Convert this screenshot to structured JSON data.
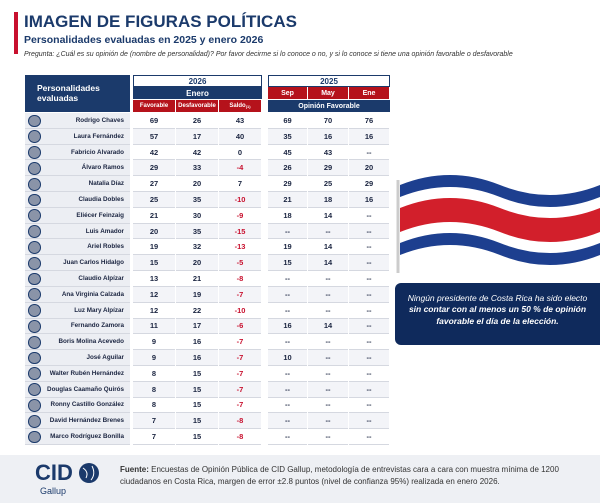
{
  "header": {
    "title": "IMAGEN DE FIGURAS POLÍTICAS",
    "subtitle": "Personalidades evaluadas en 2025 y enero 2026",
    "question": "Pregunta: ¿Cuál es su opinión de (nombre de personalidad)? Por favor decirme si lo conoce o no, y si lo conoce si tiene una opinión favorable o desfavorable"
  },
  "table": {
    "name_header": "Personalidades evaluadas",
    "group_2026": {
      "year": "2026",
      "month": "Enero",
      "columns": [
        "Favorable",
        "Desfavorable",
        "Saldo"
      ],
      "saldo_note": "(1)"
    },
    "group_2025": {
      "year": "2025",
      "months": [
        "Sep",
        "May",
        "Ene"
      ],
      "label": "Opinión Favorable"
    },
    "rows": [
      [
        "Rodrigo Chaves",
        69,
        26,
        43,
        69,
        70,
        76
      ],
      [
        "Laura Fernández",
        57,
        17,
        40,
        35,
        16,
        16
      ],
      [
        "Fabricio Alvarado",
        42,
        42,
        0,
        45,
        43,
        "--"
      ],
      [
        "Álvaro Ramos",
        29,
        33,
        -4,
        26,
        29,
        20
      ],
      [
        "Natalia Díaz",
        27,
        20,
        7,
        29,
        25,
        29
      ],
      [
        "Claudia Dobles",
        25,
        35,
        -10,
        21,
        18,
        16
      ],
      [
        "Eliécer Feinzaig",
        21,
        30,
        -9,
        18,
        14,
        "--"
      ],
      [
        "Luis Amador",
        20,
        35,
        -15,
        "--",
        "--",
        "--"
      ],
      [
        "Ariel Robles",
        19,
        32,
        -13,
        19,
        14,
        "--"
      ],
      [
        "Juan Carlos Hidalgo",
        15,
        20,
        -5,
        15,
        14,
        "--"
      ],
      [
        "Claudio Alpízar",
        13,
        21,
        -8,
        "--",
        "--",
        "--"
      ],
      [
        "Ana Virginia Calzada",
        12,
        19,
        -7,
        "--",
        "--",
        "--"
      ],
      [
        "Luz Mary Alpízar",
        12,
        22,
        -10,
        "--",
        "--",
        "--"
      ],
      [
        "Fernando Zamora",
        11,
        17,
        -6,
        16,
        14,
        "--"
      ],
      [
        "Boris Molina Acevedo",
        9,
        16,
        -7,
        "--",
        "--",
        "--"
      ],
      [
        "José Aguilar",
        9,
        16,
        -7,
        10,
        "--",
        "--"
      ],
      [
        "Walter Rubén Hernández",
        8,
        15,
        -7,
        "--",
        "--",
        "--"
      ],
      [
        "Douglas Caamaño Quirós",
        8,
        15,
        -7,
        "--",
        "--",
        "--"
      ],
      [
        "Ronny Castillo González",
        8,
        15,
        -7,
        "--",
        "--",
        "--"
      ],
      [
        "David Hernández Brenes",
        7,
        15,
        -8,
        "--",
        "--",
        "--"
      ],
      [
        "Marco Rodríguez Bonilla",
        7,
        15,
        -8,
        "--",
        "--",
        "--"
      ]
    ]
  },
  "callout": {
    "text": "Ningún presidente de Costa Rica ha sido electo",
    "bold": "sin contar con al menos un 50 % de opinión favorable el día de la elección."
  },
  "footer": {
    "logo": "CID",
    "logo_sub": "Gallup",
    "source_label": "Fuente:",
    "source": "Encuestas de Opinión Pública de CID Gallup, metodología de entrevistas cara a cara con muestra mínima de 1200 ciudadanos en Costa Rica, margen de error ±2.8 puntos (nivel de confianza 95%) realizada en enero 2026."
  }
}
